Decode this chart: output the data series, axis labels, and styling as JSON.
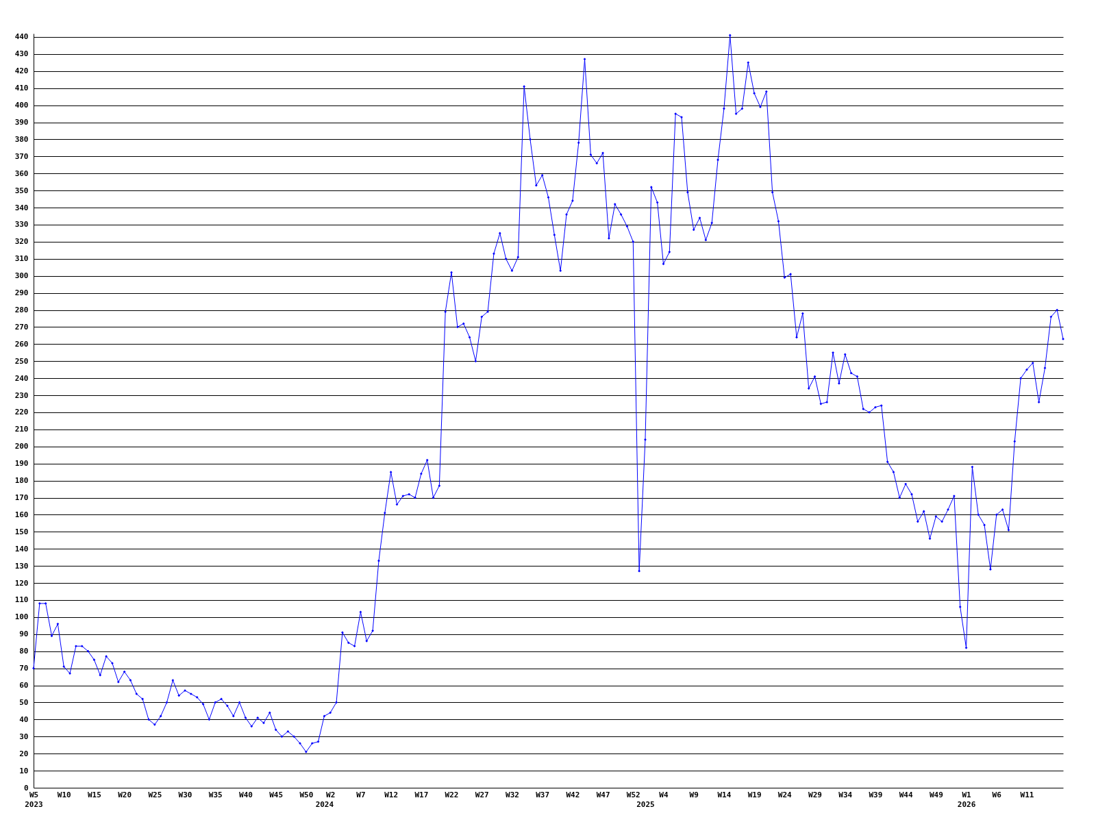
{
  "chart_data": {
    "type": "line",
    "categories": [
      "W5\n2023",
      null,
      null,
      null,
      null,
      "W10",
      null,
      null,
      null,
      null,
      "W15",
      null,
      null,
      null,
      null,
      "W20",
      null,
      null,
      null,
      null,
      "W25",
      null,
      null,
      null,
      null,
      "W30",
      null,
      null,
      null,
      null,
      "W35",
      null,
      null,
      null,
      null,
      "W40",
      null,
      null,
      null,
      null,
      "W45",
      null,
      null,
      null,
      null,
      "W50",
      null,
      null,
      "\n2024",
      "W2",
      null,
      null,
      null,
      null,
      "W7",
      null,
      null,
      null,
      null,
      "W12",
      null,
      null,
      null,
      null,
      "W17",
      null,
      null,
      null,
      null,
      "W22",
      null,
      null,
      null,
      null,
      "W27",
      null,
      null,
      null,
      null,
      "W32",
      null,
      null,
      null,
      null,
      "W37",
      null,
      null,
      null,
      null,
      "W42",
      null,
      null,
      null,
      null,
      "W47",
      null,
      null,
      null,
      null,
      "W52",
      null,
      "\n2025",
      null,
      null,
      "W4",
      null,
      null,
      null,
      null,
      "W9",
      null,
      null,
      null,
      null,
      "W14",
      null,
      null,
      null,
      null,
      "W19",
      null,
      null,
      null,
      null,
      "W24",
      null,
      null,
      null,
      null,
      "W29",
      null,
      null,
      null,
      null,
      "W34",
      null,
      null,
      null,
      null,
      "W39",
      null,
      null,
      null,
      null,
      "W44",
      null,
      null,
      null,
      null,
      "W49",
      null,
      null,
      null,
      null,
      "W1\n2026",
      null,
      null,
      null,
      null,
      "W6",
      null,
      null,
      null,
      null,
      "W11",
      null,
      null,
      null,
      null,
      null,
      null
    ],
    "series": [
      {
        "color": "#0000ff",
        "values": [
          70,
          108,
          108,
          89,
          96,
          71,
          67,
          83,
          83,
          80,
          75,
          66,
          77,
          73,
          62,
          68,
          63,
          55,
          52,
          40,
          37,
          42,
          50,
          63,
          54,
          57,
          55,
          53,
          49,
          40,
          50,
          52,
          48,
          42,
          50,
          41,
          36,
          41,
          38,
          44,
          34,
          30,
          33,
          30,
          26,
          21,
          26,
          27,
          42,
          44,
          50,
          91,
          85,
          83,
          103,
          86,
          92,
          133,
          161,
          185,
          166,
          171,
          172,
          170,
          184,
          192,
          170,
          177,
          279,
          302,
          270,
          272,
          264,
          250,
          276,
          279,
          313,
          325,
          310,
          303,
          311,
          411,
          380,
          353,
          359,
          346,
          324,
          303,
          336,
          344,
          378,
          427,
          371,
          366,
          372,
          322,
          342,
          336,
          329,
          320,
          127,
          204,
          352,
          343,
          307,
          314,
          395,
          393,
          349,
          327,
          334,
          321,
          331,
          368,
          398,
          441,
          395,
          398,
          425,
          407,
          399,
          408,
          349,
          332,
          299,
          301,
          264,
          278,
          234,
          241,
          225,
          226,
          255,
          237,
          254,
          243,
          241,
          222,
          220,
          223,
          224,
          191,
          185,
          170,
          178,
          172,
          156,
          162,
          146,
          159,
          156,
          163,
          171,
          106,
          82,
          188,
          160,
          154,
          128,
          160,
          163,
          151,
          203,
          240,
          245,
          249,
          226,
          246,
          276,
          280,
          263
        ]
      }
    ],
    "ylim": [
      0,
      442
    ],
    "yticks": [
      0,
      10,
      20,
      30,
      40,
      50,
      60,
      70,
      80,
      90,
      100,
      110,
      120,
      130,
      140,
      150,
      160,
      170,
      180,
      190,
      200,
      210,
      220,
      230,
      240,
      250,
      260,
      270,
      280,
      290,
      300,
      310,
      320,
      330,
      340,
      350,
      360,
      370,
      380,
      390,
      400,
      410,
      420,
      430,
      440
    ],
    "grid": "y",
    "marker": "diamond",
    "line_style": "solid"
  }
}
